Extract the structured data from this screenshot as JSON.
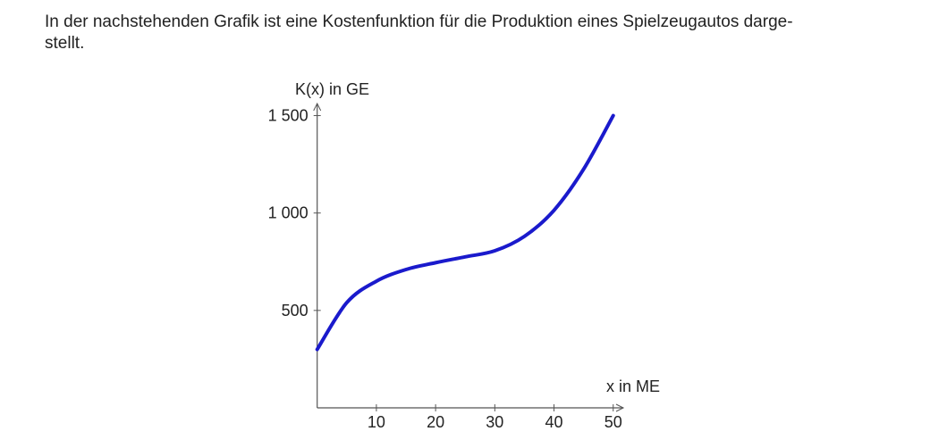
{
  "text_lines": [
    "In der nachstehenden Grafik ist eine Kostenfunktion für die Produktion eines Spielzeugautos darge-",
    "stellt."
  ],
  "chart_data": {
    "type": "line",
    "ylabel": "K(x) in GE",
    "xlabel": "x in ME",
    "x": [
      0,
      5,
      10,
      15,
      20,
      25,
      30,
      35,
      40,
      45,
      50
    ],
    "series": [
      {
        "name": "K",
        "color": "#1a1acc",
        "values": [
          300,
          540,
          650,
          710,
          745,
          775,
          806,
          880,
          1014,
          1225,
          1500
        ]
      }
    ],
    "xlim": [
      0,
      51.7
    ],
    "ylim": [
      0,
      1562
    ],
    "xticks": [
      10,
      20,
      30,
      40,
      50
    ],
    "yticks": [
      500,
      {
        "value": 1000,
        "label": "1 000"
      },
      {
        "value": 1500,
        "label": "1 500"
      }
    ]
  }
}
